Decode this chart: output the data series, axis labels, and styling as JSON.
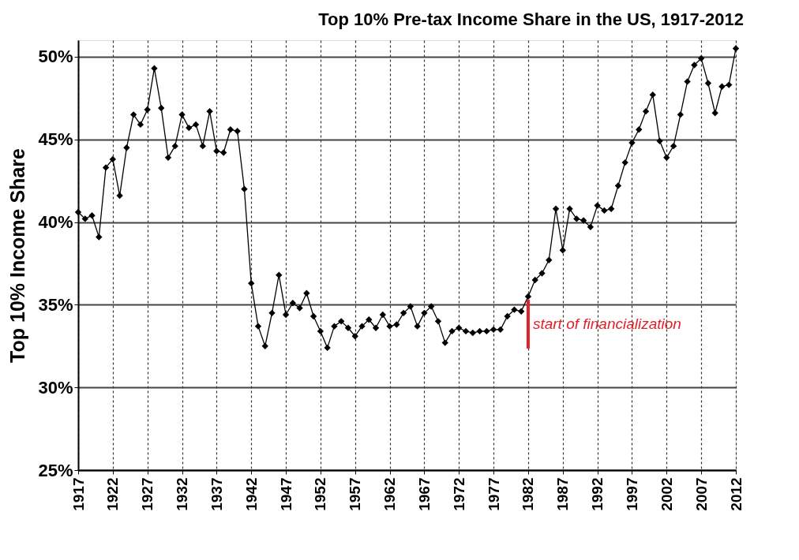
{
  "chart_data": {
    "type": "line",
    "title": "Top 10% Pre-tax Income Share in the US, 1917-2012",
    "ylabel": "Top 10% Income Share",
    "x": [
      1917,
      1918,
      1919,
      1920,
      1921,
      1922,
      1923,
      1924,
      1925,
      1926,
      1927,
      1928,
      1929,
      1930,
      1931,
      1932,
      1933,
      1934,
      1935,
      1936,
      1937,
      1938,
      1939,
      1940,
      1941,
      1942,
      1943,
      1944,
      1945,
      1946,
      1947,
      1948,
      1949,
      1950,
      1951,
      1952,
      1953,
      1954,
      1955,
      1956,
      1957,
      1958,
      1959,
      1960,
      1961,
      1962,
      1963,
      1964,
      1965,
      1966,
      1967,
      1968,
      1969,
      1970,
      1971,
      1972,
      1973,
      1974,
      1975,
      1976,
      1977,
      1978,
      1979,
      1980,
      1981,
      1982,
      1983,
      1984,
      1985,
      1986,
      1987,
      1988,
      1989,
      1990,
      1991,
      1992,
      1993,
      1994,
      1995,
      1996,
      1997,
      1998,
      1999,
      2000,
      2001,
      2002,
      2003,
      2004,
      2005,
      2006,
      2007,
      2008,
      2009,
      2010,
      2011,
      2012
    ],
    "series": [
      {
        "color": "#000000",
        "values": [
          40.6,
          40.2,
          40.4,
          39.1,
          43.3,
          43.8,
          41.6,
          44.5,
          46.5,
          45.9,
          46.8,
          49.3,
          46.9,
          43.9,
          44.6,
          46.5,
          45.7,
          45.9,
          44.6,
          46.7,
          44.3,
          44.2,
          45.6,
          45.5,
          42.0,
          36.3,
          33.7,
          32.5,
          34.5,
          36.8,
          34.4,
          35.1,
          34.8,
          35.7,
          34.3,
          33.4,
          32.4,
          33.7,
          34.0,
          33.6,
          33.1,
          33.7,
          34.1,
          33.6,
          34.4,
          33.7,
          33.8,
          34.5,
          34.9,
          33.7,
          34.5,
          34.9,
          34.0,
          32.7,
          33.4,
          33.6,
          33.4,
          33.3,
          33.4,
          33.4,
          33.5,
          33.5,
          34.3,
          34.7,
          34.6,
          35.5,
          36.5,
          36.9,
          37.7,
          40.8,
          38.3,
          40.8,
          40.2,
          40.1,
          39.7,
          41.0,
          40.7,
          40.8,
          42.2,
          43.6,
          44.8,
          45.6,
          46.7,
          47.7,
          44.9,
          43.9,
          44.6,
          46.5,
          48.5,
          49.5,
          49.9,
          48.4,
          46.6,
          48.2,
          48.3,
          50.5
        ]
      }
    ],
    "xlim": [
      1917,
      2012
    ],
    "xticks": [
      1917,
      1922,
      1927,
      1932,
      1937,
      1942,
      1947,
      1952,
      1957,
      1962,
      1967,
      1972,
      1977,
      1982,
      1987,
      1992,
      1997,
      2002,
      2007,
      2012
    ],
    "ylim": [
      25,
      51
    ],
    "yticks": [
      {
        "value": 25,
        "label": "25%"
      },
      {
        "value": 30,
        "label": "30%"
      },
      {
        "value": 35,
        "label": "35%"
      },
      {
        "value": 40,
        "label": "40%"
      },
      {
        "value": 45,
        "label": "45%"
      },
      {
        "value": 50,
        "label": "50%"
      }
    ],
    "grid": true,
    "marker": "diamond",
    "line_style": "solid",
    "ref_lines": [
      {
        "axis": "x",
        "value": 1982,
        "label": "start of financialization",
        "color": "#e0202a"
      }
    ]
  }
}
